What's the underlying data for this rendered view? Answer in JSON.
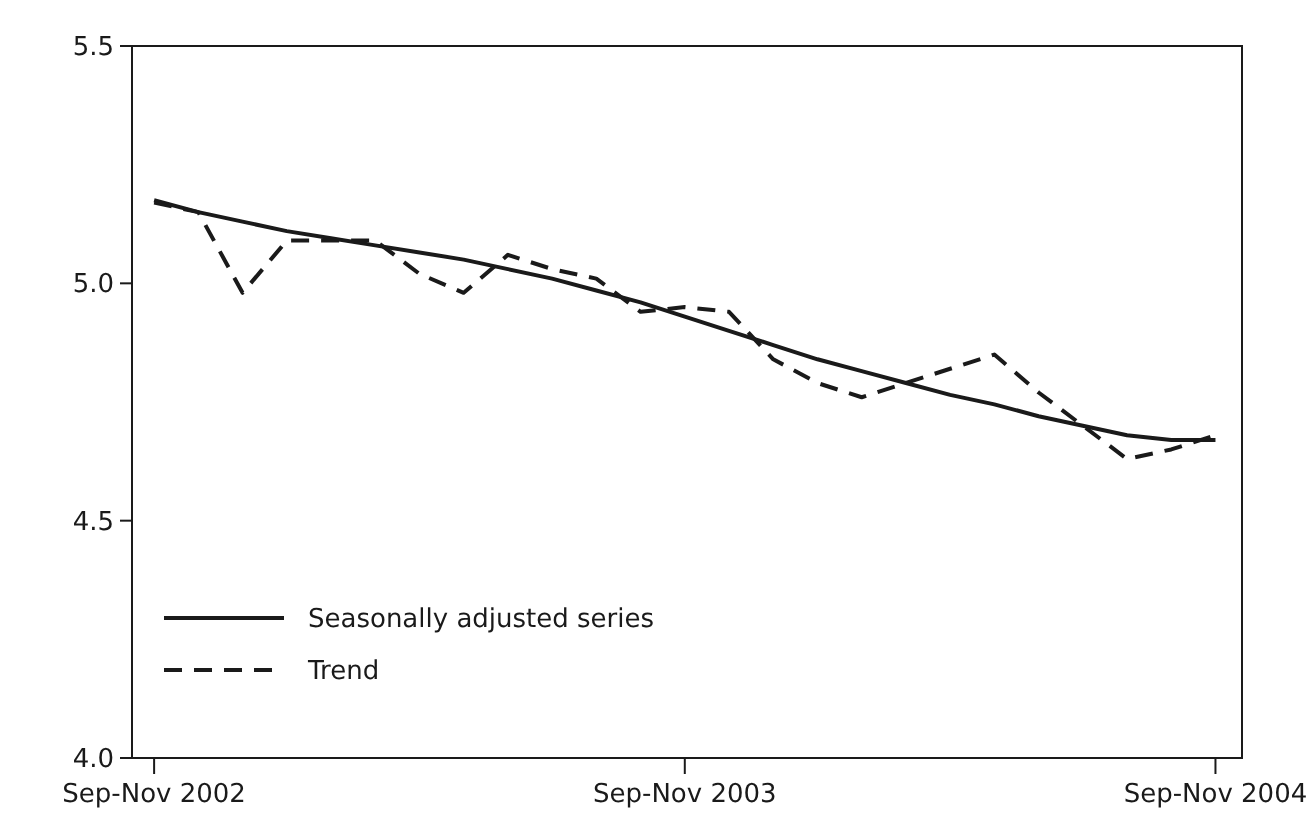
{
  "chart_data": {
    "type": "line",
    "categories": [
      "Sep-Nov 2002",
      null,
      null,
      null,
      null,
      null,
      null,
      null,
      null,
      null,
      null,
      null,
      "Sep-Nov 2003",
      null,
      null,
      null,
      null,
      null,
      null,
      null,
      null,
      null,
      null,
      null,
      "Sep-Nov 2004"
    ],
    "series": [
      {
        "name": "Seasonally adjusted series",
        "color": "#1a1a1a",
        "line_style": "solid",
        "values": [
          5.175,
          5.15,
          5.13,
          5.11,
          5.095,
          5.08,
          5.065,
          5.05,
          5.03,
          5.01,
          4.985,
          4.96,
          4.93,
          4.9,
          4.87,
          4.84,
          4.815,
          4.79,
          4.765,
          4.745,
          4.72,
          4.7,
          4.68,
          4.67,
          4.67
        ]
      },
      {
        "name": "Trend",
        "color": "#1a1a1a",
        "line_style": "dashed",
        "values": [
          5.17,
          5.15,
          4.98,
          5.09,
          5.09,
          5.09,
          5.02,
          4.98,
          5.06,
          5.03,
          5.01,
          4.94,
          4.95,
          4.94,
          4.84,
          4.79,
          4.76,
          4.79,
          4.82,
          4.85,
          4.77,
          4.7,
          4.63,
          4.65,
          4.68
        ]
      }
    ],
    "ylim": [
      4.0,
      5.5
    ],
    "yticks": [
      {
        "value": 4.0,
        "label": "4.0"
      },
      {
        "value": 4.5,
        "label": "4.5"
      },
      {
        "value": 5.0,
        "label": "5.0"
      },
      {
        "value": 5.5,
        "label": "5.5"
      }
    ],
    "grid": false,
    "legend": "bottom left"
  }
}
